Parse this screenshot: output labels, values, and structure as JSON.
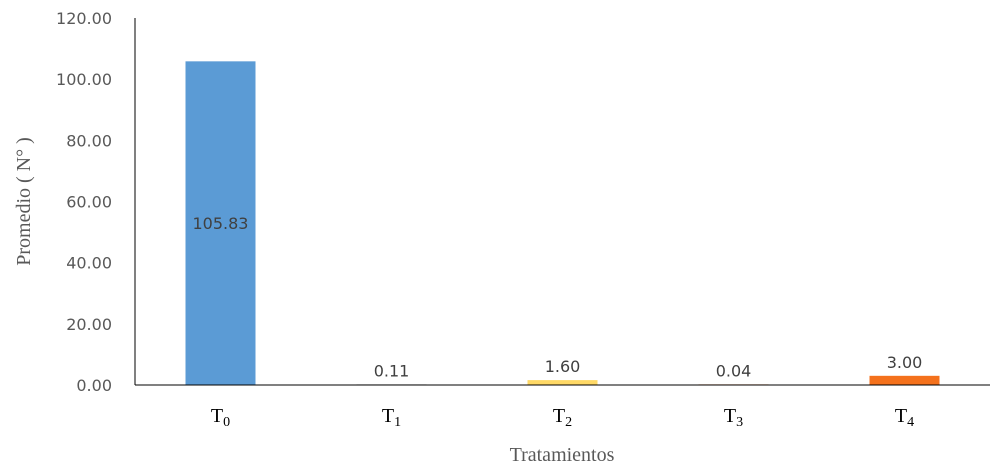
{
  "chart_data": {
    "type": "bar",
    "categories": [
      {
        "base": "T",
        "sub": "0"
      },
      {
        "base": "T",
        "sub": "1"
      },
      {
        "base": "T",
        "sub": "2"
      },
      {
        "base": "T",
        "sub": "3"
      },
      {
        "base": "T",
        "sub": "4"
      }
    ],
    "values": [
      105.83,
      0.11,
      1.6,
      0.04,
      3.0
    ],
    "value_labels": [
      "105.83",
      "0.11",
      "1.60",
      "0.04",
      "3.00"
    ],
    "bar_colors": [
      "#5b9bd5",
      "#a5a5a5",
      "#ffd966",
      "#ed7d31",
      "#f4711c"
    ],
    "label_position": [
      "inside-center",
      "above",
      "above",
      "above",
      "above"
    ],
    "title": "",
    "xlabel": "Tratamientos",
    "ylabel": "Promedio ( N° )",
    "ylim": [
      0,
      120
    ],
    "yticks": [
      "0.00",
      "20.00",
      "40.00",
      "60.00",
      "80.00",
      "100.00",
      "120.00"
    ],
    "grid": false,
    "legend": "none"
  }
}
